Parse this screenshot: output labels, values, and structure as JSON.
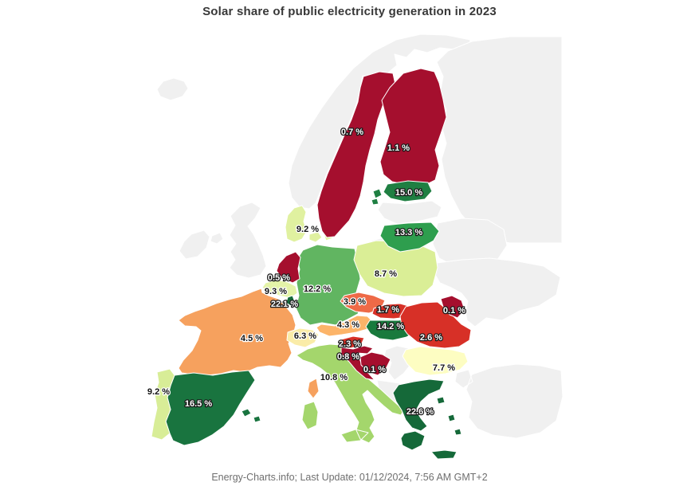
{
  "title": "Solar share of public electricity generation in 2023",
  "footer": "Energy-Charts.info; Last Update: 01/12/2024, 7:56 AM GMT+2",
  "colors": {
    "background": "#ffffff",
    "no_data": "#f0f0f0",
    "border": "#ffffff",
    "title_text": "#383838",
    "footer_text": "#6f6f6f"
  },
  "chart_data": {
    "type": "choropleth_map",
    "title": "Solar share of public electricity generation in 2023",
    "unit": "%",
    "region": "Europe",
    "legend": "none (value labels drawn on countries)",
    "color_scale": "red-yellow-green (low solar share = dark red, high = dark green)",
    "countries": [
      {
        "id": "france",
        "name": "France",
        "value": 4.5,
        "label": "4.5 %",
        "color": "#f6a15e",
        "text": "dark"
      },
      {
        "id": "spain",
        "name": "Spain",
        "value": 16.5,
        "label": "16.5 %",
        "color": "#19743f",
        "text": "light"
      },
      {
        "id": "portugal",
        "name": "Portugal",
        "value": 9.2,
        "label": "9.2 %",
        "color": "#d8ed97",
        "text": "dark"
      },
      {
        "id": "italy",
        "name": "Italy",
        "value": 10.8,
        "label": "10.8 %",
        "color": "#a4d66c",
        "text": "dark"
      },
      {
        "id": "germany",
        "name": "Germany",
        "value": 12.2,
        "label": "12.2 %",
        "color": "#61b561",
        "text": "dark"
      },
      {
        "id": "denmark",
        "name": "Denmark",
        "value": 9.2,
        "label": "9.2 %",
        "color": "#e0f1a0",
        "text": "dark"
      },
      {
        "id": "poland",
        "name": "Poland",
        "value": 8.7,
        "label": "8.7 %",
        "color": "#daee96",
        "text": "dark"
      },
      {
        "id": "czechia",
        "name": "Czechia",
        "value": 3.9,
        "label": "3.9 %",
        "color": "#ee6a47",
        "text": "dark"
      },
      {
        "id": "austria",
        "name": "Austria",
        "value": 4.3,
        "label": "4.3 %",
        "color": "#fcb469",
        "text": "dark"
      },
      {
        "id": "switzerland",
        "name": "Switzerland",
        "value": 6.3,
        "label": "6.3 %",
        "color": "#faeca8",
        "text": "dark"
      },
      {
        "id": "netherlands",
        "name": "Netherlands",
        "value": 0.5,
        "label": "0.5 %",
        "color": "#a50f2e",
        "text": "light"
      },
      {
        "id": "belgium",
        "name": "Belgium",
        "value": 9.3,
        "label": "9.3 %",
        "color": "#e4f3a8",
        "text": "dark"
      },
      {
        "id": "luxembourg",
        "name": "Luxembourg",
        "value": 22.1,
        "label": "22.1 %",
        "color": "#156939",
        "text": "light"
      },
      {
        "id": "sweden",
        "name": "Sweden",
        "value": 0.7,
        "label": "0.7 %",
        "color": "#a50f2e",
        "text": "light"
      },
      {
        "id": "finland",
        "name": "Finland",
        "value": 1.1,
        "label": "1.1 %",
        "color": "#a50f2e",
        "text": "light"
      },
      {
        "id": "estonia",
        "name": "Estonia",
        "value": 15.0,
        "label": "15.0 %",
        "color": "#1f7f42",
        "text": "light"
      },
      {
        "id": "lithuania",
        "name": "Lithuania",
        "value": 13.3,
        "label": "13.3 %",
        "color": "#2e9e4e",
        "text": "light"
      },
      {
        "id": "slovakia",
        "name": "Slovakia",
        "value": 1.7,
        "label": "1.7 %",
        "color": "#d73027",
        "text": "light"
      },
      {
        "id": "hungary",
        "name": "Hungary",
        "value": 14.2,
        "label": "14.2 %",
        "color": "#197a3d",
        "text": "light"
      },
      {
        "id": "slovenia",
        "name": "Slovenia",
        "value": 2.3,
        "label": "2.3 %",
        "color": "#d73027",
        "text": "light"
      },
      {
        "id": "croatia",
        "name": "Croatia",
        "value": 0.8,
        "label": "0.8 %",
        "color": "#a50f2e",
        "text": "light"
      },
      {
        "id": "bosnia",
        "name": "Bosnia and Herzegovina",
        "value": 0.1,
        "label": "0.1 %",
        "color": "#a50f2e",
        "text": "light"
      },
      {
        "id": "romania",
        "name": "Romania",
        "value": 2.6,
        "label": "2.6 %",
        "color": "#d73027",
        "text": "light"
      },
      {
        "id": "moldova",
        "name": "Moldova",
        "value": 0.1,
        "label": "0.1 %",
        "color": "#a50f2e",
        "text": "light"
      },
      {
        "id": "bulgaria",
        "name": "Bulgaria",
        "value": 7.7,
        "label": "7.7 %",
        "color": "#fdfdc2",
        "text": "dark"
      },
      {
        "id": "greece",
        "name": "Greece",
        "value": 22.6,
        "label": "22.6 %",
        "color": "#156939",
        "text": "light"
      }
    ],
    "no_data_regions": [
      {
        "id": "iceland",
        "name": "Iceland"
      },
      {
        "id": "norway",
        "name": "Norway"
      },
      {
        "id": "uk",
        "name": "United Kingdom"
      },
      {
        "id": "ireland",
        "name": "Ireland"
      },
      {
        "id": "russia",
        "name": "Russia"
      },
      {
        "id": "kaliningrad",
        "name": "Kaliningrad"
      },
      {
        "id": "latvia",
        "name": "Latvia"
      },
      {
        "id": "belarus",
        "name": "Belarus"
      },
      {
        "id": "ukraine",
        "name": "Ukraine"
      },
      {
        "id": "serbia",
        "name": "Serbia"
      },
      {
        "id": "west_balkans",
        "name": "Montenegro / Albania / North Macedonia"
      },
      {
        "id": "turkey",
        "name": "Turkey"
      }
    ]
  }
}
